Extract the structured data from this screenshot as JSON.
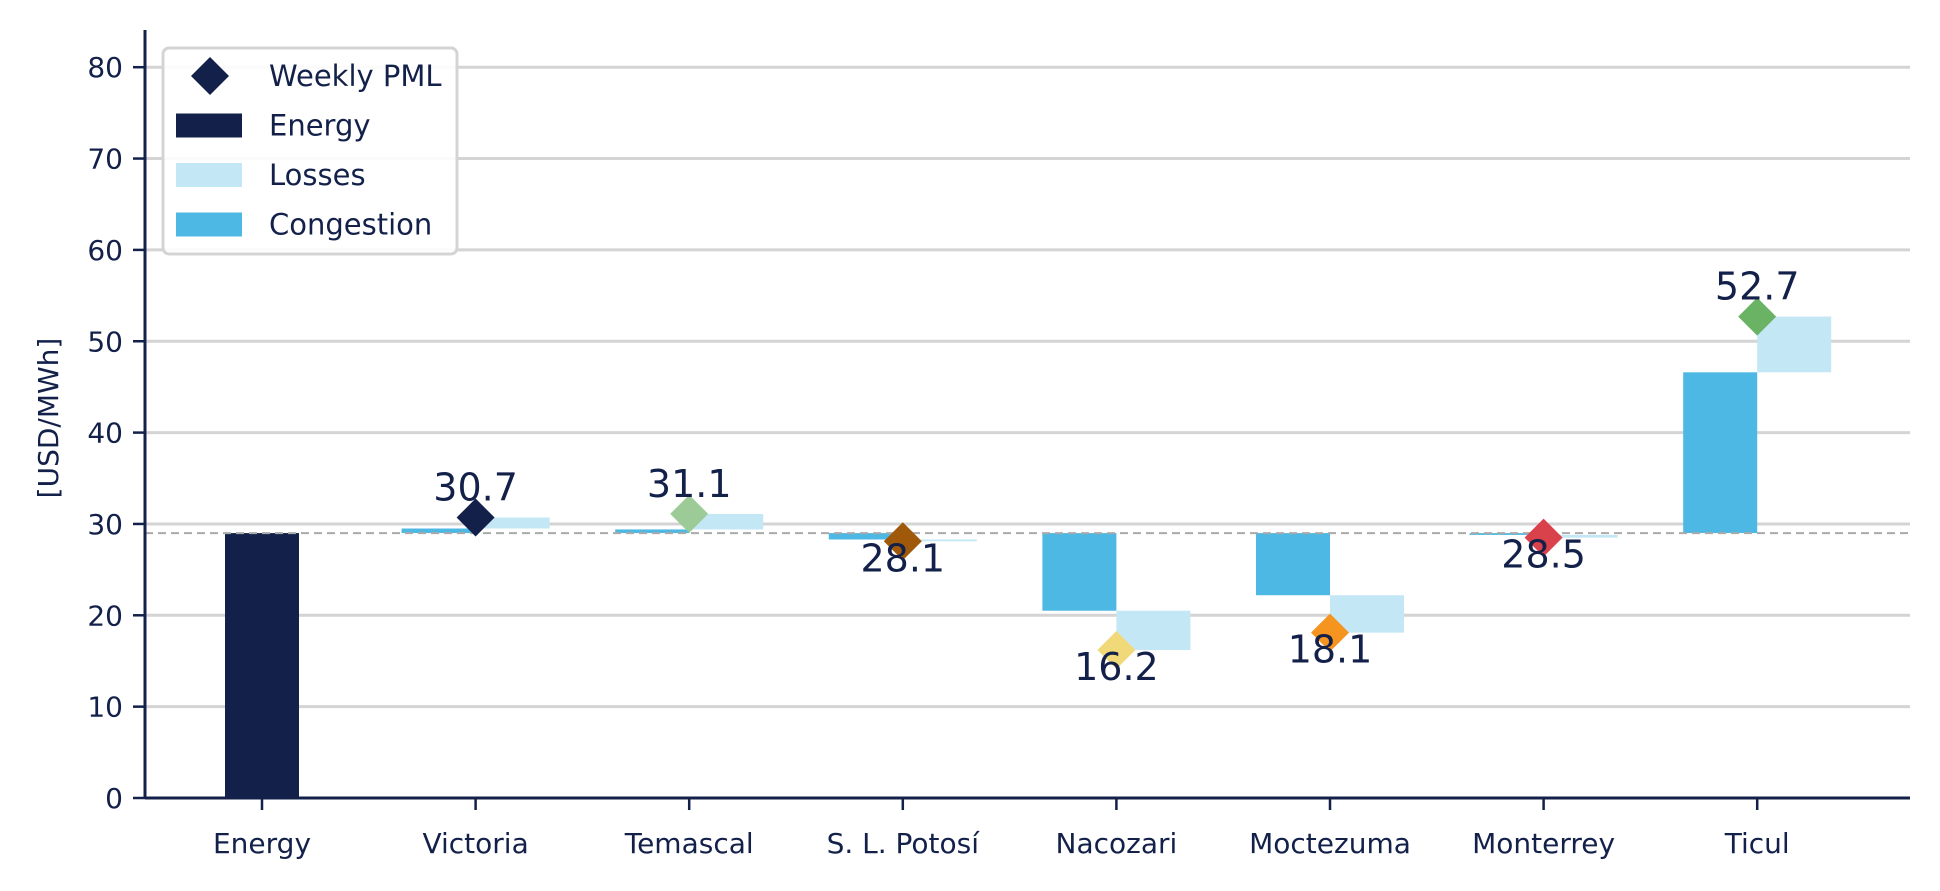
{
  "chart_data": {
    "type": "bar",
    "subtype": "waterfall",
    "ylabel": "[USD/MWh]",
    "ylim": [
      0,
      84
    ],
    "yticks": [
      0,
      10,
      20,
      30,
      40,
      50,
      60,
      70,
      80
    ],
    "grid": true,
    "legend_position": "top-left",
    "legend": [
      {
        "label": "Weekly PML",
        "marker": "diamond",
        "color": "#13214a"
      },
      {
        "label": "Energy",
        "marker": "bar",
        "color": "#13214a"
      },
      {
        "label": "Losses",
        "marker": "bar",
        "color": "#c4e7f6"
      },
      {
        "label": "Congestion",
        "marker": "bar",
        "color": "#4db8e3"
      }
    ],
    "energy_reference": 29.0,
    "energy_color": "#13214a",
    "categories": [
      "Energy",
      "Victoria",
      "Temascal",
      "S. L. Potosí",
      "Nacozari",
      "Moctezuma",
      "Monterrey",
      "Ticul"
    ],
    "nodes": [
      {
        "name": "Victoria",
        "congestion": 0.5,
        "losses": 1.2,
        "pml": 30.7,
        "pml_label": "30.7",
        "pml_color": "#13214a"
      },
      {
        "name": "Temascal",
        "congestion": 0.4,
        "losses": 1.7,
        "pml": 31.1,
        "pml_label": "31.1",
        "pml_color": "#9ccb98"
      },
      {
        "name": "S. L. Potosí",
        "congestion": -0.7,
        "losses": -0.2,
        "pml": 28.1,
        "pml_label": "28.1",
        "pml_color": "#a0580a"
      },
      {
        "name": "Nacozari",
        "congestion": -8.5,
        "losses": -4.3,
        "pml": 16.2,
        "pml_label": "16.2",
        "pml_color": "#f1d97a"
      },
      {
        "name": "Moctezuma",
        "congestion": -6.8,
        "losses": -4.1,
        "pml": 18.1,
        "pml_label": "18.1",
        "pml_color": "#f5941f"
      },
      {
        "name": "Monterrey",
        "congestion": -0.2,
        "losses": -0.3,
        "pml": 28.5,
        "pml_label": "28.5",
        "pml_color": "#d9414b"
      },
      {
        "name": "Ticul",
        "congestion": 17.6,
        "losses": 6.1,
        "pml": 52.7,
        "pml_label": "52.7",
        "pml_color": "#6ab364"
      }
    ]
  }
}
